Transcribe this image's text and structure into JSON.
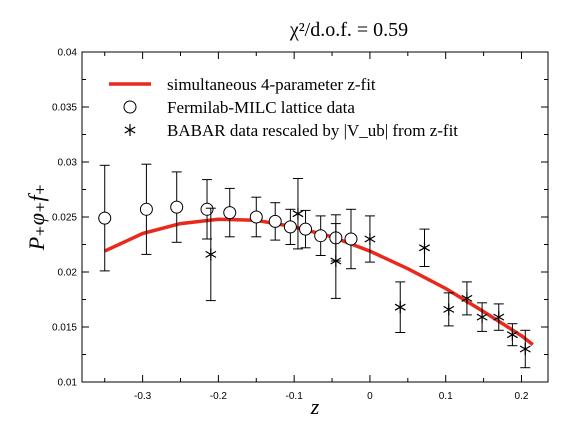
{
  "chart_data": {
    "type": "scatter",
    "title": "χ²/d.o.f. = 0.59",
    "xlabel": "z",
    "ylabel": "P₊φ₊f₊",
    "xlim": [
      -0.38,
      0.235
    ],
    "ylim": [
      0.01,
      0.04
    ],
    "x_ticks": [
      -0.3,
      -0.2,
      -0.1,
      0,
      0.1,
      0.2
    ],
    "x_tick_labels": [
      "-0.3",
      "-0.2",
      "-0.1",
      "0",
      "0.1",
      "0.2"
    ],
    "y_ticks": [
      0.01,
      0.015,
      0.02,
      0.025,
      0.03,
      0.035,
      0.04
    ],
    "y_tick_labels": [
      "0.01",
      "0.015",
      "0.02",
      "0.025",
      "0.03",
      "0.035",
      "0.04"
    ],
    "grid": false,
    "legend_position": "top-left",
    "colors": {
      "fit": "#e8291c",
      "points": "#000000"
    },
    "series": [
      {
        "name": "simultaneous 4-parameter z-fit",
        "kind": "line",
        "x": [
          -0.35,
          -0.3,
          -0.25,
          -0.2,
          -0.15,
          -0.1,
          -0.05,
          0.0,
          0.05,
          0.1,
          0.15,
          0.2,
          0.215
        ],
        "y": [
          0.0219,
          0.0235,
          0.0244,
          0.0248,
          0.0247,
          0.0241,
          0.0232,
          0.0219,
          0.0203,
          0.0185,
          0.0164,
          0.0142,
          0.0134
        ]
      },
      {
        "name": "Fermilab-MILC lattice data",
        "kind": "circle",
        "x": [
          -0.35,
          -0.295,
          -0.255,
          -0.215,
          -0.185,
          -0.15,
          -0.125,
          -0.105,
          -0.085,
          -0.065,
          -0.045,
          -0.025
        ],
        "y": [
          0.0249,
          0.0257,
          0.0259,
          0.0257,
          0.0254,
          0.025,
          0.0246,
          0.0241,
          0.0239,
          0.0233,
          0.0231,
          0.023
        ],
        "y_err": [
          0.0048,
          0.0041,
          0.0032,
          0.0027,
          0.0022,
          0.0018,
          0.0017,
          0.0016,
          0.0017,
          0.0018,
          0.0021,
          0.0027
        ]
      },
      {
        "name": "BABAR data rescaled by |V_ub| from z-fit",
        "kind": "asterisk",
        "x": [
          -0.21,
          -0.095,
          -0.045,
          0.0,
          0.04,
          0.072,
          0.104,
          0.128,
          0.148,
          0.17,
          0.188,
          0.205
        ],
        "y": [
          0.0216,
          0.0253,
          0.021,
          0.023,
          0.0168,
          0.0222,
          0.0166,
          0.0176,
          0.0159,
          0.0159,
          0.0143,
          0.013
        ],
        "y_err": [
          0.0042,
          0.0032,
          0.0034,
          0.0021,
          0.0023,
          0.0017,
          0.0015,
          0.0015,
          0.0013,
          0.0012,
          0.001,
          0.0017
        ]
      }
    ]
  }
}
